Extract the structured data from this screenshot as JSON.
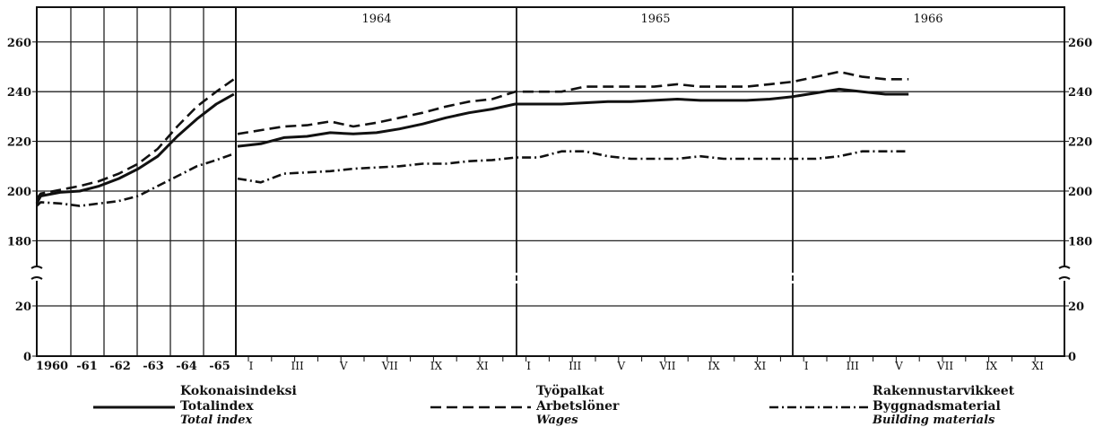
{
  "chart_data": {
    "type": "line",
    "title": "",
    "xlabel": "",
    "ylabel": "",
    "y_ticks": [
      "260",
      "240",
      "220",
      "200",
      "180",
      "20",
      "0"
    ],
    "y_axis_break": "between 20 and 180",
    "annual_x_labels": [
      "1960",
      "-61",
      "-62",
      "-63",
      "-64",
      "-65"
    ],
    "month_x_labels": [
      "I",
      "III",
      "V",
      "VII",
      "IX",
      "XI",
      "I",
      "III",
      "V",
      "VII",
      "IX",
      "XI",
      "I",
      "III",
      "V",
      "VII",
      "IX",
      "XI"
    ],
    "year_headers": [
      "1964",
      "1965",
      "1966"
    ],
    "grid": true,
    "legend_placement": "bottom",
    "legend": [
      {
        "fi": "Kokonaisindeksi",
        "sv": "Totalindex",
        "en": "Total index",
        "style": "solid"
      },
      {
        "fi": "Työpalkat",
        "sv": "Arbetslöner",
        "en": "Wages",
        "style": "dashed"
      },
      {
        "fi": "Rakennustarvikkeet",
        "sv": "Byggnadsmaterial",
        "en": "Building materials",
        "style": "dash-dot"
      }
    ],
    "annual_series": [
      {
        "key": "total",
        "points": [
          [
            1959.9,
            195
          ],
          [
            1960,
            198
          ],
          [
            1960.5,
            199.5
          ],
          [
            1961,
            200
          ],
          [
            1961.5,
            202
          ],
          [
            1962,
            205
          ],
          [
            1962.5,
            209
          ],
          [
            1963,
            214
          ],
          [
            1963.5,
            222
          ],
          [
            1964,
            229
          ],
          [
            1964.5,
            235
          ],
          [
            1964.95,
            239
          ]
        ]
      },
      {
        "key": "wages",
        "points": [
          [
            1959.9,
            197
          ],
          [
            1960,
            199
          ],
          [
            1960.5,
            200.5
          ],
          [
            1961,
            202
          ],
          [
            1961.5,
            204
          ],
          [
            1962,
            207
          ],
          [
            1962.5,
            211
          ],
          [
            1963,
            217
          ],
          [
            1963.5,
            226
          ],
          [
            1964,
            234
          ],
          [
            1964.5,
            240
          ],
          [
            1964.95,
            245
          ]
        ]
      },
      {
        "key": "materials",
        "points": [
          [
            1959.9,
            194
          ],
          [
            1960,
            195.5
          ],
          [
            1960.5,
            195
          ],
          [
            1961,
            194
          ],
          [
            1961.5,
            195
          ],
          [
            1962,
            196
          ],
          [
            1962.5,
            198
          ],
          [
            1963,
            202
          ],
          [
            1963.5,
            206
          ],
          [
            1964,
            210
          ],
          [
            1964.5,
            212.5
          ],
          [
            1964.95,
            215
          ]
        ]
      }
    ],
    "monthly_series": [
      {
        "key": "total",
        "start_month": "1964-I",
        "values": [
          218,
          219,
          221.5,
          222,
          223.5,
          223,
          223.5,
          225,
          227,
          229.5,
          231.5,
          233,
          235,
          235,
          235,
          235.5,
          236,
          236,
          236.5,
          237,
          236.5,
          236.5,
          236.5,
          237,
          238,
          239.5,
          241,
          240,
          239,
          239
        ]
      },
      {
        "key": "wages",
        "start_month": "1964-I",
        "values": [
          223,
          224.5,
          226,
          226.5,
          228,
          226,
          227.5,
          229.5,
          231.5,
          234,
          236,
          237,
          240,
          240,
          240,
          242,
          242,
          242,
          242,
          243,
          242,
          242,
          242,
          243,
          244,
          246,
          248,
          246,
          245,
          245
        ]
      },
      {
        "key": "materials",
        "start_month": "1964-I",
        "values": [
          205,
          203.5,
          207,
          207.5,
          208,
          209,
          209.5,
          210,
          211,
          211,
          212,
          212.5,
          213.5,
          213.5,
          216,
          216,
          214,
          213,
          213,
          213,
          214,
          213,
          213,
          213,
          213,
          213,
          214,
          216,
          216,
          216
        ]
      }
    ]
  }
}
